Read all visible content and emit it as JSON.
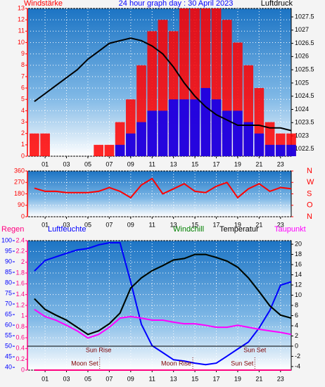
{
  "chart_data": [
    {
      "type": "combo",
      "title": "24 hour graph day : 30 April 2023",
      "title_color": "#0000ff",
      "ylabel": "Windstärke",
      "ylabel_color": "#ff0000",
      "y2label": "Luftdruck",
      "y2label_color": "#000000",
      "x": [
        0,
        1,
        2,
        3,
        4,
        5,
        6,
        7,
        8,
        9,
        10,
        11,
        12,
        13,
        14,
        15,
        16,
        17,
        18,
        19,
        20,
        21,
        22,
        23,
        24
      ],
      "xlim": [
        -0.65,
        24
      ],
      "xticks": [
        {
          "value": 1,
          "label": "01"
        },
        {
          "value": 3,
          "label": "03"
        },
        {
          "value": 5,
          "label": "05"
        },
        {
          "value": 7,
          "label": "07"
        },
        {
          "value": 9,
          "label": "09"
        },
        11,
        13,
        15,
        17,
        19,
        21,
        23
      ],
      "ylim": [
        0,
        13
      ],
      "yticks": [
        0,
        1,
        2,
        3,
        4,
        5,
        6,
        7,
        8,
        9,
        10,
        11,
        12,
        13
      ],
      "yaxis_color": "#ff0000",
      "y2lim": [
        1022.23,
        1027.82
      ],
      "y2ticks": [
        1022.5,
        1023,
        1023.5,
        1024,
        1024.5,
        1025,
        1025.5,
        1026,
        1026.5,
        1027,
        1027.5
      ],
      "y2axis_color": "#000000",
      "grid": true,
      "series": [
        {
          "kind": "bar",
          "color": "#ff0000",
          "values": [
            2,
            2,
            0,
            0,
            0,
            0,
            1,
            1,
            3,
            5,
            8,
            11,
            12,
            11,
            13,
            13,
            13,
            13,
            12,
            10,
            8,
            6,
            3,
            2,
            2
          ]
        },
        {
          "kind": "bar",
          "color": "#0000ff",
          "values": [
            0,
            0,
            0,
            0,
            0,
            0,
            0,
            0,
            1,
            2,
            3,
            4,
            4,
            5,
            5,
            5,
            6,
            5,
            4,
            4,
            3,
            2,
            1,
            1,
            1
          ]
        },
        {
          "kind": "line",
          "color": "#000000",
          "axis": "y2",
          "values": [
            1024.3,
            1024.6,
            1024.9,
            1025.2,
            1025.5,
            1025.9,
            1026.2,
            1026.5,
            1026.6,
            1026.7,
            1026.6,
            1026.4,
            1026.1,
            1025.6,
            1025.0,
            1024.5,
            1024.1,
            1023.8,
            1023.6,
            1023.4,
            1023.4,
            1023.4,
            1023.3,
            1023.3,
            1023.2
          ]
        }
      ]
    },
    {
      "type": "line",
      "x": [
        0,
        1,
        2,
        3,
        4,
        5,
        6,
        7,
        8,
        9,
        10,
        11,
        12,
        13,
        14,
        15,
        16,
        17,
        18,
        19,
        20,
        21,
        22,
        23,
        24
      ],
      "xlim": [
        -0.65,
        24
      ],
      "xticks": [
        {
          "value": 1,
          "label": "01"
        },
        {
          "value": 3,
          "label": "03"
        },
        {
          "value": 5,
          "label": "05"
        },
        {
          "value": 7,
          "label": "07"
        },
        {
          "value": 9,
          "label": "09"
        },
        11,
        13,
        15,
        17,
        19,
        21,
        23
      ],
      "ylim": [
        0,
        360
      ],
      "yticks": [
        0,
        90,
        180,
        270,
        360
      ],
      "yaxis_color": "#ff0000",
      "y2lim": [
        0,
        360
      ],
      "y2ticks": [
        {
          "value": 0,
          "label": "N"
        },
        {
          "value": 90,
          "label": "O"
        },
        {
          "value": 180,
          "label": "S"
        },
        {
          "value": 270,
          "label": "W"
        },
        {
          "value": 360,
          "label": "N"
        }
      ],
      "y2axis_color": "#ff0000",
      "grid": true,
      "series": [
        {
          "color": "#ff0000",
          "values": [
            225,
            200,
            200,
            190,
            190,
            190,
            200,
            230,
            200,
            150,
            250,
            300,
            180,
            220,
            260,
            200,
            190,
            240,
            270,
            150,
            220,
            260,
            200,
            230,
            220
          ]
        }
      ]
    },
    {
      "type": "line",
      "x": [
        0,
        1,
        2,
        3,
        4,
        5,
        6,
        7,
        8,
        9,
        10,
        11,
        12,
        13,
        14,
        15,
        16,
        17,
        18,
        19,
        20,
        21,
        22,
        23,
        24
      ],
      "xlim": [
        -0.65,
        24
      ],
      "xticks": [
        {
          "value": 1,
          "label": "01"
        },
        {
          "value": 3,
          "label": "03"
        },
        {
          "value": 5,
          "label": "05"
        },
        {
          "value": 7,
          "label": "07"
        },
        {
          "value": 9,
          "label": "09"
        },
        11,
        13,
        15,
        17,
        19,
        21,
        23
      ],
      "ylim": [
        0,
        2.4
      ],
      "yticks": [
        0,
        0.2,
        0.4,
        0.6,
        0.8,
        1,
        1.2,
        1.4,
        1.6,
        1.8,
        2,
        2.2,
        2.4
      ],
      "yaxis_color": "#ff0080",
      "y3lim": [
        38.7,
        100
      ],
      "y3ticks": [
        40,
        45,
        50,
        55,
        60,
        65,
        70,
        75,
        80,
        85,
        90,
        95,
        100
      ],
      "y3axis_color": "#0000ff",
      "y2lim": [
        -4.7,
        20.7
      ],
      "y2ticks": [
        -4,
        -2,
        0,
        2,
        4,
        6,
        8,
        10,
        12,
        14,
        16,
        18,
        20
      ],
      "y2axis_color": "#000000",
      "grid": true,
      "reference_line": 0,
      "sun_events": [
        {
          "text": "Sun Rise",
          "x": 6.0
        },
        {
          "text": "Sun Set",
          "x": 20.6
        }
      ],
      "markers": [
        {
          "text": "Moon Set",
          "x": 6.1
        },
        {
          "text": "Moon Rise",
          "x": 14.8
        },
        {
          "text": "Sun Set",
          "x": 20.6
        }
      ],
      "series": [
        {
          "name": "Regen",
          "color": "#ff0080",
          "values": [
            0,
            0,
            0,
            0,
            0,
            0,
            0,
            0,
            0,
            0,
            0,
            0,
            0,
            0,
            0,
            0,
            0,
            0,
            0,
            0,
            0,
            0,
            0,
            0,
            0
          ]
        },
        {
          "name": "Luftfeuchte",
          "color": "#0000ff",
          "axis": "y3",
          "values": [
            85.6,
            90.6,
            92.3,
            94,
            95.6,
            96.3,
            98,
            99,
            99,
            80.5,
            60.4,
            50.3,
            47,
            43.6,
            43,
            42,
            41.3,
            42,
            45.3,
            48.7,
            52,
            58.7,
            67,
            78.9,
            80.5
          ]
        },
        {
          "name": "Windchill",
          "color": "#008000",
          "axis": "y2",
          "values": [
            9.3,
            7.2,
            6.1,
            5.1,
            3.7,
            2.3,
            3.0,
            4.4,
            6.5,
            11.4,
            13.4,
            14.8,
            15.8,
            16.9,
            17.2,
            18.0,
            18.0,
            17.4,
            16.7,
            15.5,
            13.4,
            10.7,
            7.9,
            6.1,
            5.5
          ]
        },
        {
          "name": "Temperatur",
          "color": "#000000",
          "axis": "y2",
          "values": [
            9.3,
            7.2,
            6.1,
            5.1,
            3.7,
            2.3,
            3.0,
            4.4,
            6.5,
            11.4,
            13.4,
            14.8,
            15.8,
            16.9,
            17.2,
            18.0,
            18.0,
            17.4,
            16.7,
            15.5,
            13.4,
            10.7,
            7.9,
            6.1,
            5.5
          ]
        },
        {
          "name": "Taupunkt",
          "color": "#ff00ff",
          "axis": "y2",
          "values": [
            7.2,
            5.8,
            5.1,
            4.1,
            3.0,
            1.6,
            2.3,
            3.7,
            5.5,
            5.8,
            5.5,
            5.1,
            5.1,
            4.7,
            4.4,
            4.4,
            4.1,
            3.7,
            3.7,
            4.1,
            3.7,
            3.3,
            3.0,
            2.7,
            2.3
          ]
        }
      ]
    }
  ]
}
